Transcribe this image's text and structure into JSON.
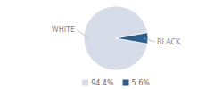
{
  "chart_data": {
    "type": "pie",
    "categories": [
      "WHITE",
      "BLACK"
    ],
    "values": [
      94.4,
      5.6
    ],
    "value_labels": [
      "94.4%",
      "5.6%"
    ],
    "colors": [
      "#d6dde8",
      "#2e5f8a"
    ],
    "legend": "bottom"
  }
}
